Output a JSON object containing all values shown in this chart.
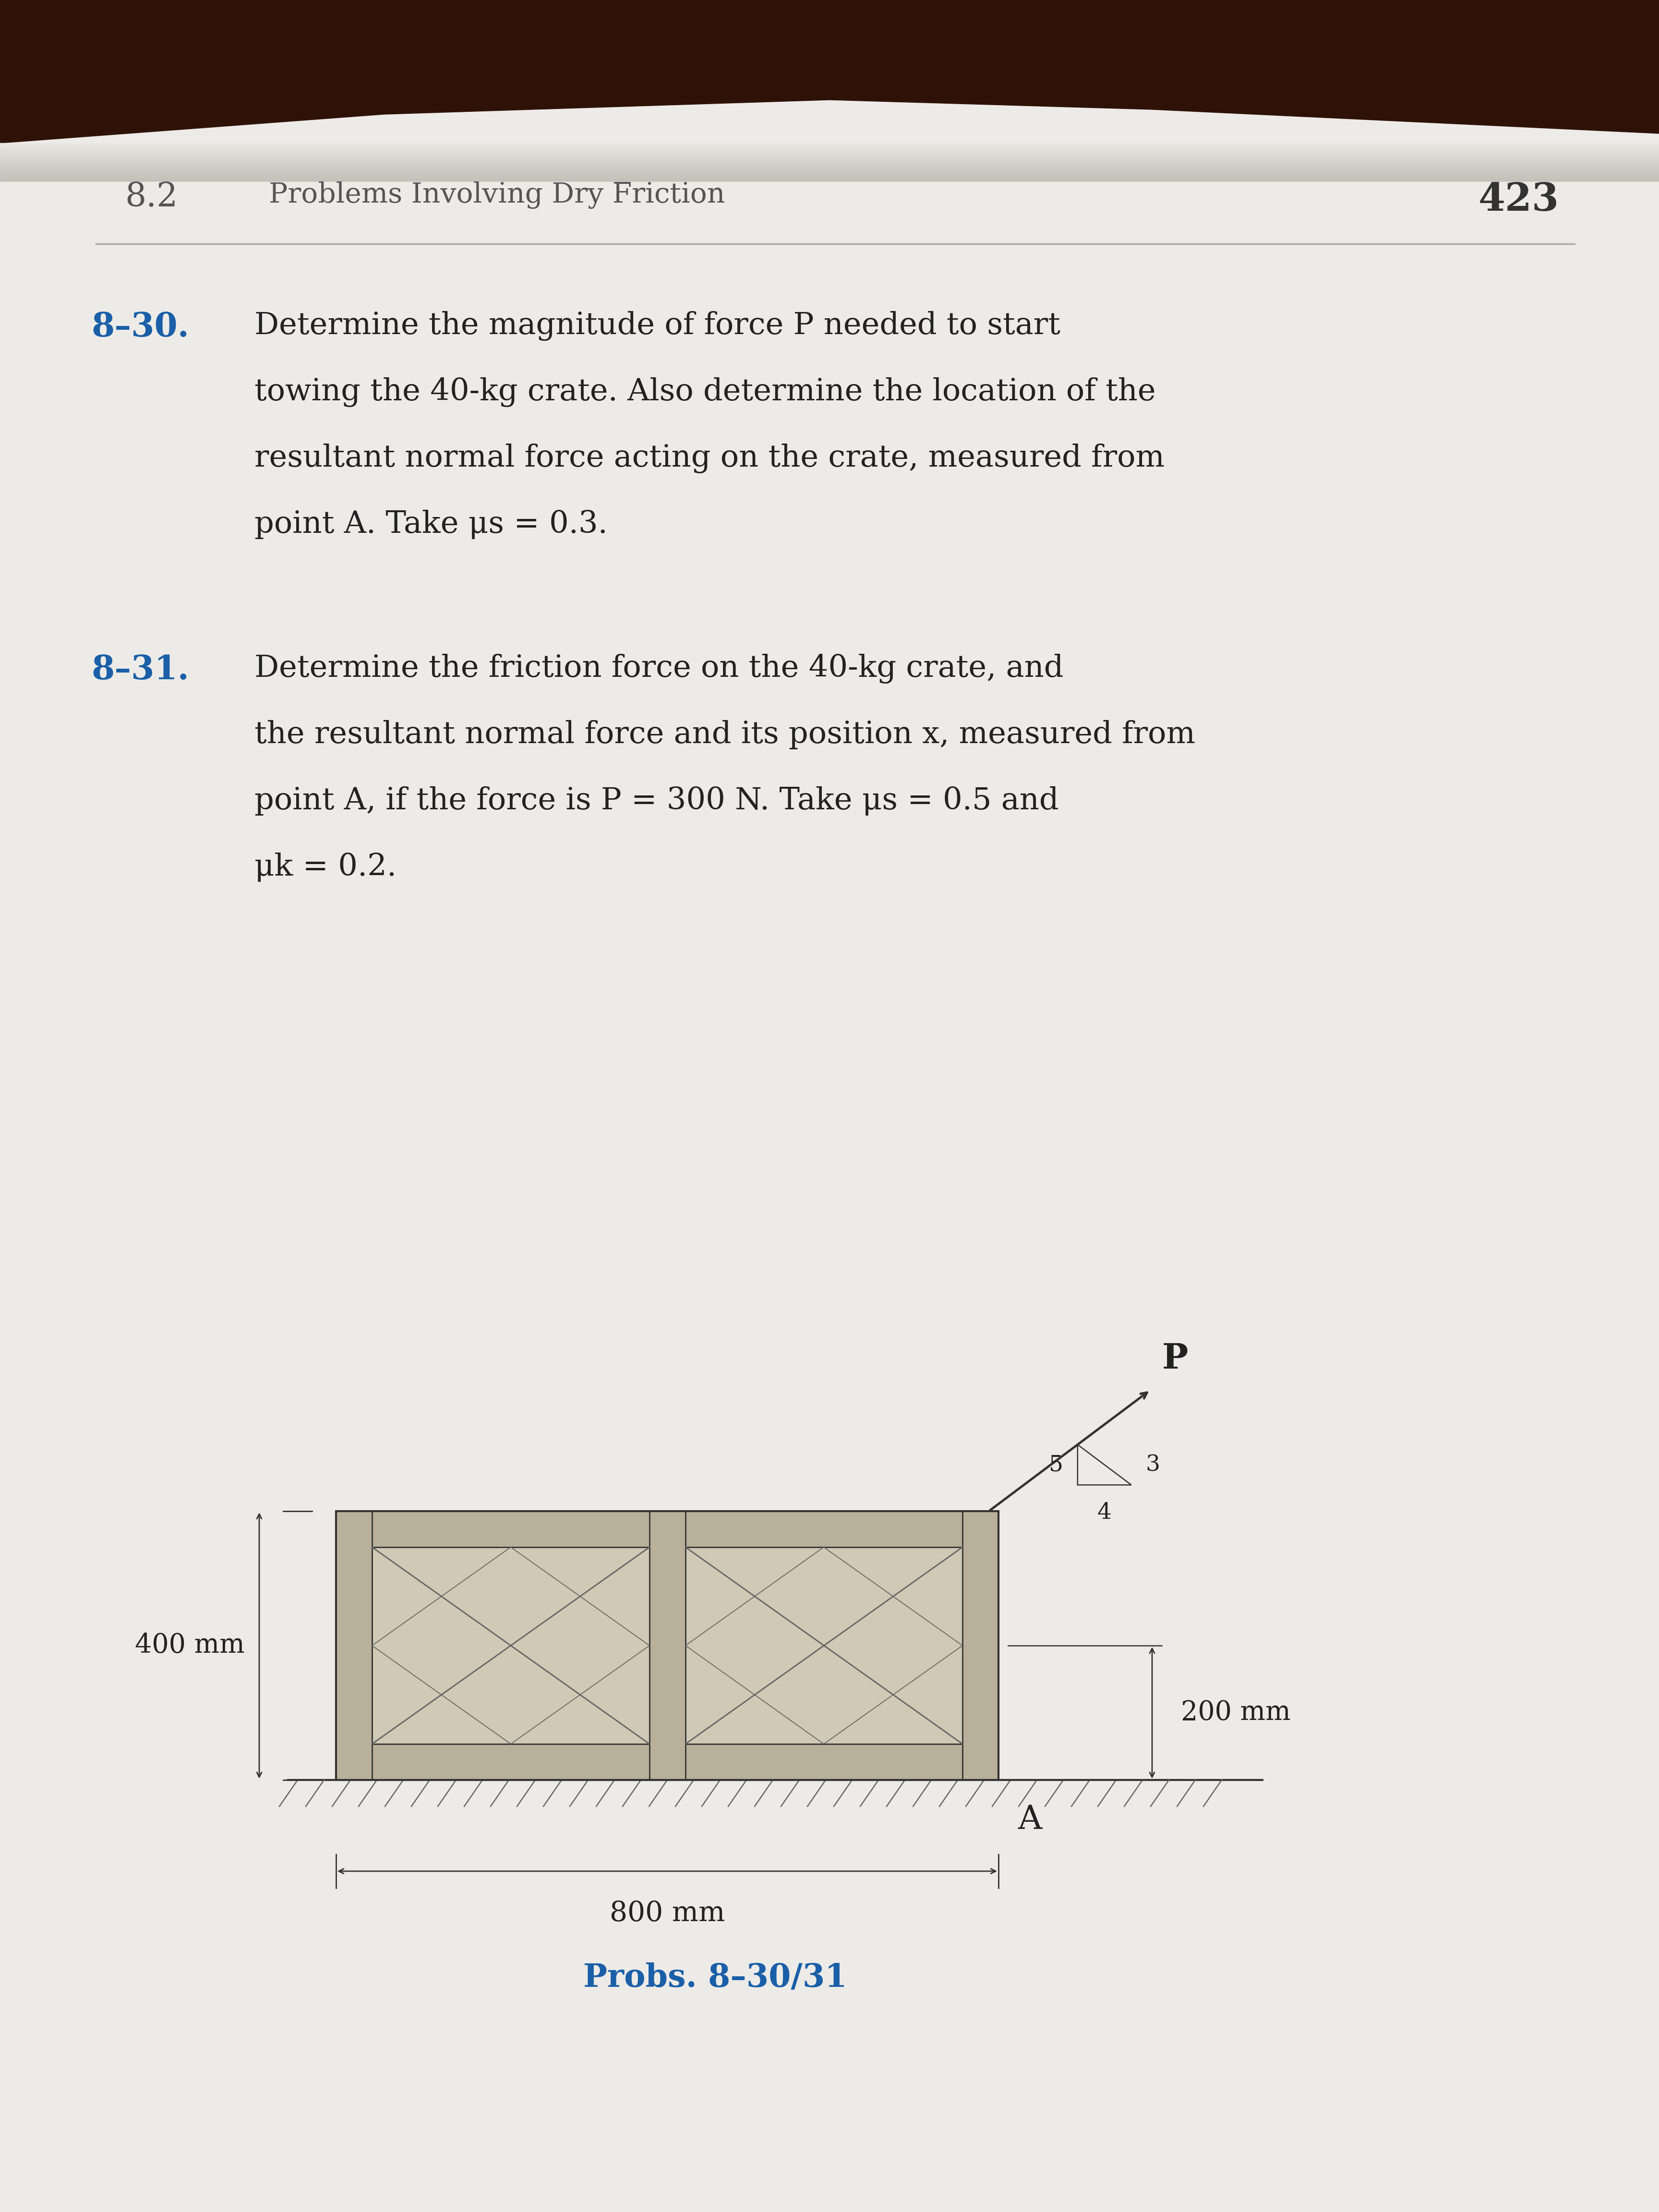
{
  "page_bg": "#edebe7",
  "brown_top": "#2e1208",
  "header_color": "#555555",
  "page_number": "423",
  "header_text": "Problems Involving Dry Friction",
  "header_prefix": "8.2",
  "problem_label_color": "#1a5fa8",
  "body_text_color": "#222222",
  "caption_color": "#1a5fa8",
  "label_830": "8–30.",
  "label_831": "8–31.",
  "line_830": [
    "Determine the magnitude of force P needed to start",
    "towing the 40-kg crate. Also determine the location of the",
    "resultant normal force acting on the crate, measured from",
    "point A. Take μs = 0.3."
  ],
  "line_831": [
    "Determine the friction force on the 40-kg crate, and",
    "the resultant normal force and its position x, measured from",
    "point A, if the force is P = 300 N. Take μs = 0.5 and",
    "μk = 0.2."
  ],
  "caption": "Probs. 8–30/31",
  "dim_400": "400 mm",
  "dim_800": "800 mm",
  "dim_200": "200 mm",
  "label_A": "A",
  "label_P": "P",
  "tri_labels": [
    "5",
    "4",
    "3"
  ],
  "crate_face": "#cfc9b5",
  "crate_strip": "#b8b09a",
  "crate_edge": "#333333",
  "ground_color": "#333333",
  "arrow_color": "#333333",
  "hatch_color": "#666666"
}
